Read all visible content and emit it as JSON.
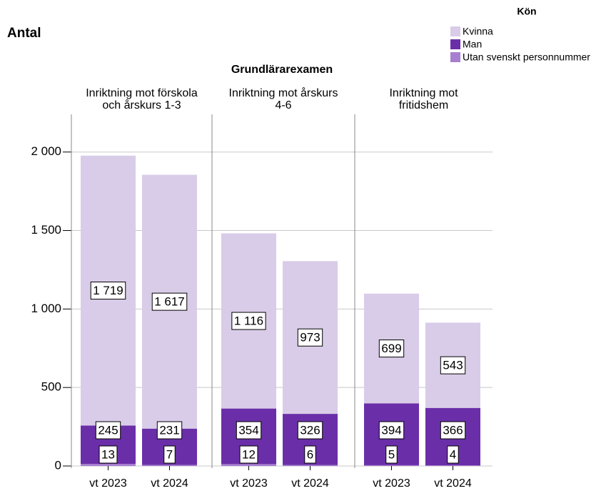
{
  "chart_data": {
    "type": "bar",
    "stacked": true,
    "title": "Grundlärarexamen",
    "y_label": "Antal",
    "legend_title": "Kön",
    "legend_position": "top-right",
    "grid": true,
    "facets": [
      {
        "title": [
          "Inriktning mot förskola",
          "och årskurs 1-3"
        ],
        "categories": [
          "vt 2023",
          "vt 2024"
        ]
      },
      {
        "title": [
          "Inriktning mot årskurs",
          "4-6"
        ],
        "categories": [
          "vt 2023",
          "vt 2024"
        ]
      },
      {
        "title": [
          "Inriktning mot",
          "fritidshem"
        ],
        "categories": [
          "vt 2023",
          "vt 2024"
        ]
      }
    ],
    "series": [
      {
        "name": "Utan svenskt personnummer",
        "color": "#a77fd0",
        "values": [
          [
            13,
            7
          ],
          [
            12,
            6
          ],
          [
            5,
            4
          ]
        ]
      },
      {
        "name": "Man",
        "color": "#6a2fa8",
        "values": [
          [
            245,
            231
          ],
          [
            354,
            326
          ],
          [
            394,
            366
          ]
        ]
      },
      {
        "name": "Kvinna",
        "color": "#d9cce8",
        "values": [
          [
            1719,
            1617
          ],
          [
            1116,
            973
          ],
          [
            699,
            543
          ]
        ],
        "value_labels": [
          [
            "1 719",
            "1 617"
          ],
          [
            "1 116",
            "973"
          ],
          [
            "699",
            "543"
          ]
        ]
      }
    ],
    "ylim": [
      0,
      2240
    ],
    "yticks": [
      0,
      500,
      {
        "value": 1000,
        "label": "1 000"
      },
      {
        "value": 1500,
        "label": "1 500"
      },
      {
        "value": 2000,
        "label": "2 000"
      }
    ]
  }
}
